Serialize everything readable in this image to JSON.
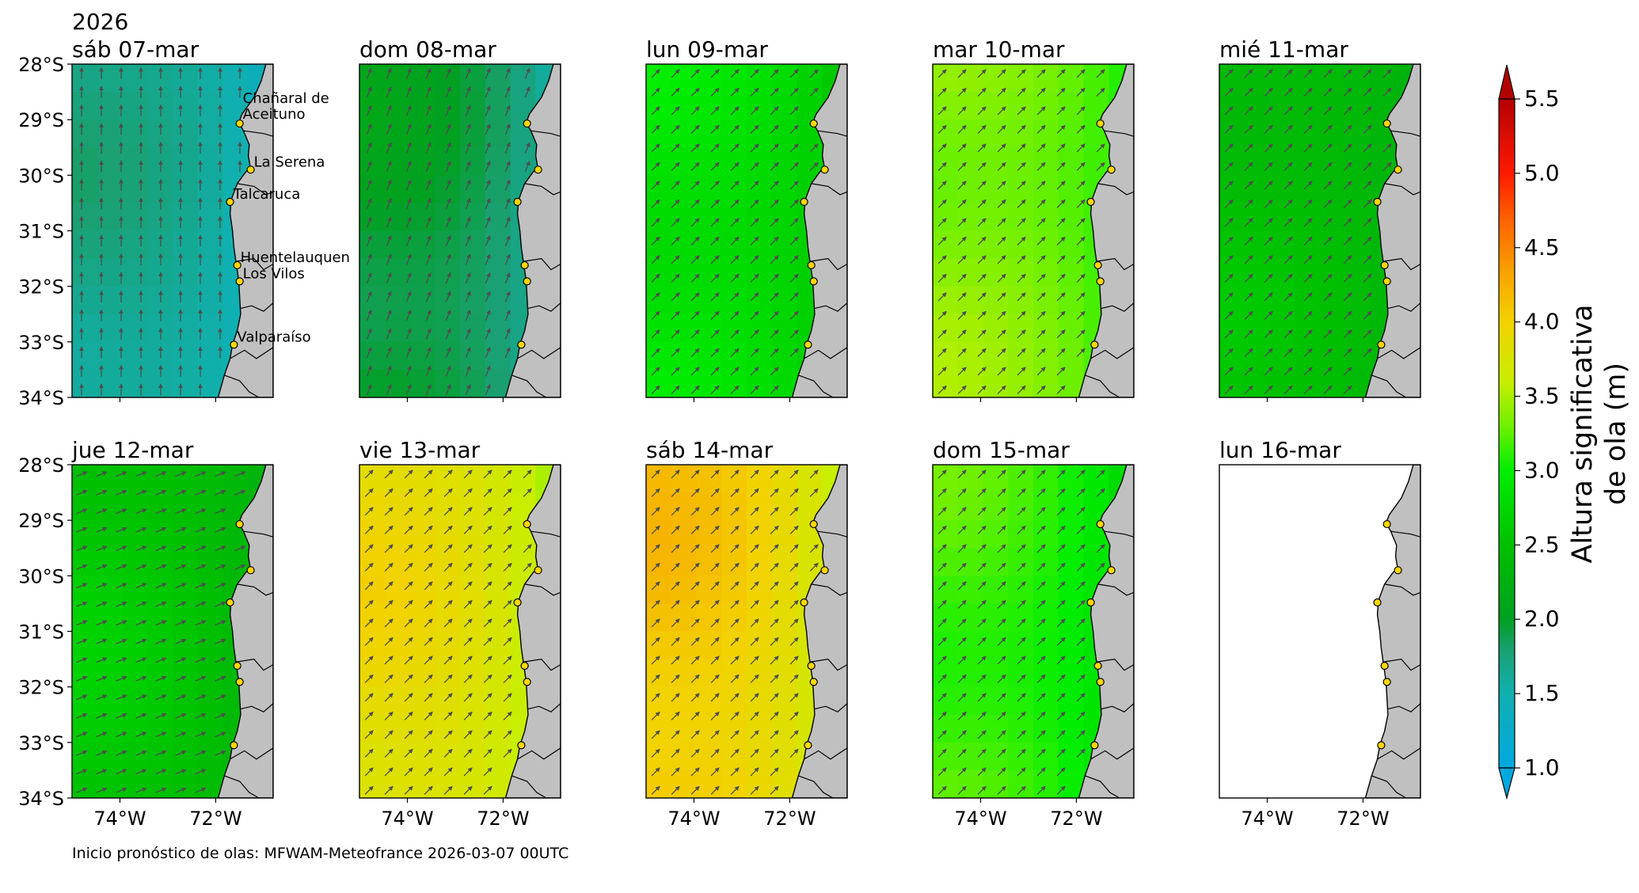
{
  "figure": {
    "year": "2026",
    "footnote": "Inicio pronóstico de olas: MFWAM-Meteofrance 2026-03-07 00UTC"
  },
  "colorbar": {
    "label_line1": "Altura significativa",
    "label_line2": "de ola (m)",
    "min": 1.0,
    "max": 5.5,
    "ticks": [
      "1.0",
      "1.5",
      "2.0",
      "2.5",
      "3.0",
      "3.5",
      "4.0",
      "4.5",
      "5.0",
      "5.5"
    ]
  },
  "axes": {
    "lat_ticks": [
      "28°S",
      "29°S",
      "30°S",
      "31°S",
      "32°S",
      "33°S",
      "34°S"
    ],
    "lon_ticks": [
      "74°W",
      "72°W"
    ],
    "lat_range": [
      -34,
      -28
    ],
    "lon_range": [
      -75,
      -70.8
    ]
  },
  "locations": [
    {
      "name": "Chañaral de Aceituno",
      "label_lines": [
        "Chañaral de",
        "Aceituno"
      ],
      "lat": -29.07,
      "lon": -71.5
    },
    {
      "name": "La Serena",
      "label_lines": [
        "La Serena"
      ],
      "lat": -29.9,
      "lon": -71.27
    },
    {
      "name": "Talcaruca",
      "label_lines": [
        "Talcaruca"
      ],
      "lat": -30.48,
      "lon": -71.7
    },
    {
      "name": "Huentelauquen",
      "label_lines": [
        "Huentelauquen"
      ],
      "lat": -31.62,
      "lon": -71.55
    },
    {
      "name": "Los Vilos",
      "label_lines": [
        "Los Vilos"
      ],
      "lat": -31.91,
      "lon": -71.5
    },
    {
      "name": "Valparaíso",
      "label_lines": [
        "Valparaíso"
      ],
      "lat": -33.05,
      "lon": -71.62
    }
  ],
  "chart_data": {
    "type": "heatmap",
    "variable": "Altura significativa de ola (m)",
    "panels": [
      {
        "title": "sáb 07-mar",
        "offshore_hs": 1.7,
        "nearshore_hs": 1.4,
        "wave_dir": "N"
      },
      {
        "title": "dom 08-mar",
        "offshore_hs": 2.0,
        "nearshore_hs": 1.6,
        "wave_dir": "NNE"
      },
      {
        "title": "lun 09-mar",
        "offshore_hs": 2.9,
        "nearshore_hs": 2.6,
        "wave_dir": "NE"
      },
      {
        "title": "mar 10-mar",
        "offshore_hs": 3.4,
        "nearshore_hs": 3.1,
        "wave_dir": "NE"
      },
      {
        "title": "mié 11-mar",
        "offshore_hs": 2.5,
        "nearshore_hs": 2.3,
        "wave_dir": "NE"
      },
      {
        "title": "jue 12-mar",
        "offshore_hs": 2.6,
        "nearshore_hs": 2.3,
        "wave_dir": "ENE"
      },
      {
        "title": "vie 13-mar",
        "offshore_hs": 3.9,
        "nearshore_hs": 3.5,
        "wave_dir": "NE"
      },
      {
        "title": "sáb 14-mar",
        "offshore_hs": 4.1,
        "nearshore_hs": 3.6,
        "wave_dir": "NE"
      },
      {
        "title": "dom 15-mar",
        "offshore_hs": 3.2,
        "nearshore_hs": 2.8,
        "wave_dir": "NE"
      },
      {
        "title": "lun 16-mar",
        "offshore_hs": null,
        "nearshore_hs": null,
        "wave_dir": null
      }
    ]
  },
  "colors": {
    "land": "#c0c0c0",
    "marker": "#ffd700",
    "arrow": "#4d4d4d"
  }
}
